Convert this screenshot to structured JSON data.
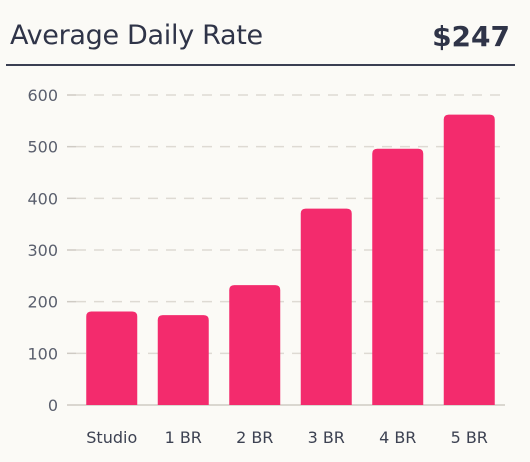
{
  "header": {
    "title": "Average Daily Rate",
    "value": "$247"
  },
  "colors": {
    "bar": "#f32b6d",
    "grid": "#dedad3",
    "axis": "#cfcbc4"
  },
  "chart_data": {
    "type": "bar",
    "title": "",
    "xlabel": "",
    "ylabel": "",
    "categories": [
      "Studio",
      "1 BR",
      "2 BR",
      "3 BR",
      "4 BR",
      "5 BR"
    ],
    "values": [
      181,
      174,
      232,
      380,
      496,
      562
    ],
    "ylim": [
      0,
      600
    ],
    "yticks": [
      0,
      100,
      200,
      300,
      400,
      500,
      600
    ],
    "grid": true,
    "legend": "none"
  }
}
